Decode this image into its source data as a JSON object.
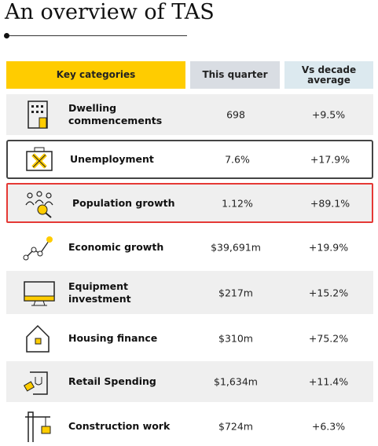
{
  "header": {
    "title": "An overview of TAS"
  },
  "table": {
    "columns": [
      "Key categories",
      "This quarter",
      "Vs decade average"
    ],
    "rows": [
      [
        "Dwelling commencements",
        "698",
        "+9.5%"
      ],
      [
        "Unemployment",
        "7.6%",
        "+17.9%"
      ],
      [
        "Population growth",
        "1.12%",
        "+89.1%"
      ],
      [
        "Economic growth",
        "$39,691m",
        "+19.9%"
      ],
      [
        "Equipment investment",
        "$217m",
        "+15.2%"
      ],
      [
        "Housing finance",
        "$310m",
        "+75.2%"
      ],
      [
        "Retail Spending",
        "$1,634m",
        "+11.4%"
      ],
      [
        "Construction work",
        "$724m",
        "+6.3%"
      ]
    ]
  }
}
